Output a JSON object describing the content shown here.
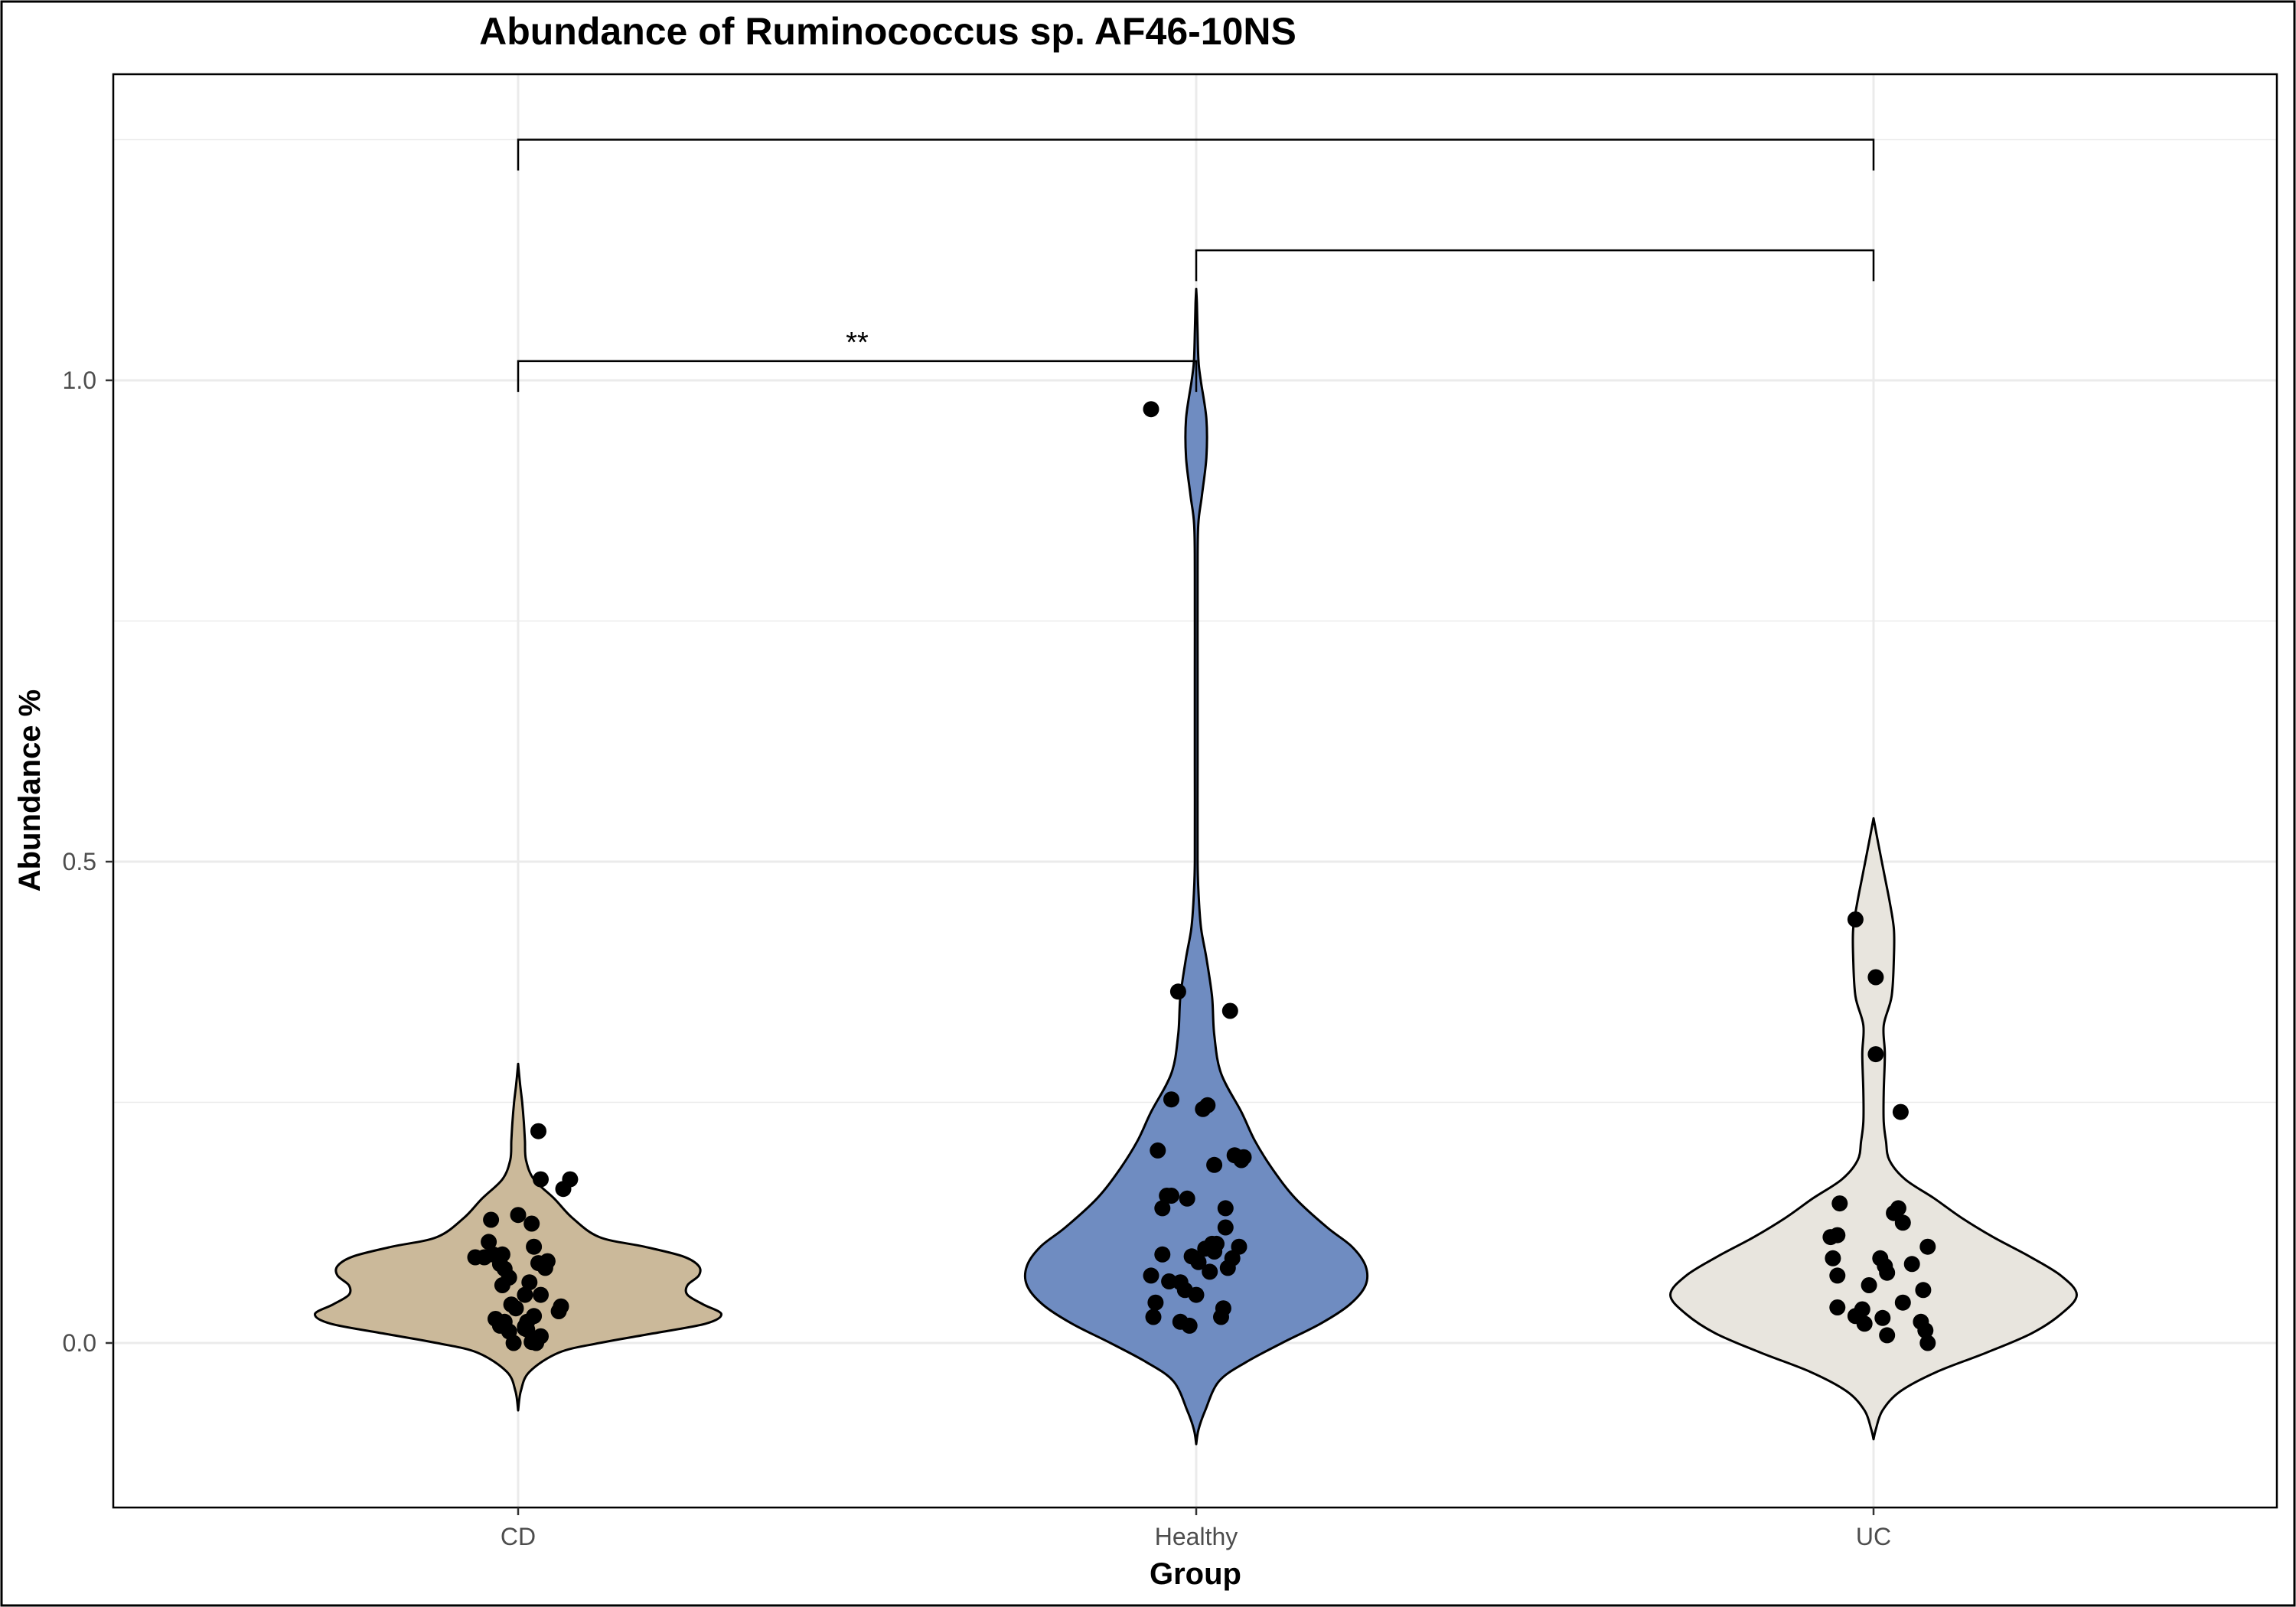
{
  "chart_data": {
    "type": "violin",
    "title": "Abundance of Ruminococcus sp. AF46-10NS",
    "xlabel": "Group",
    "ylabel": "Abundance %",
    "categories": [
      "CD",
      "Healthy",
      "UC"
    ],
    "ylim": [
      -0.17,
      1.3
    ],
    "yticks": [
      0.0,
      0.5,
      1.0
    ],
    "ytick_labels": [
      "0.0",
      "0.5",
      "1.0"
    ],
    "grid": true,
    "colors": {
      "CD": "#cbb99a",
      "Healthy": "#6f8cc1",
      "UC": "#e8e5de",
      "points": "#000000",
      "grid": "#ebebeb"
    },
    "violins": [
      {
        "group": "CD",
        "y": [
          -0.07,
          -0.05,
          -0.03,
          -0.01,
          0.0,
          0.01,
          0.02,
          0.03,
          0.04,
          0.05,
          0.06,
          0.07,
          0.08,
          0.09,
          0.1,
          0.11,
          0.13,
          0.15,
          0.17,
          0.19,
          0.21,
          0.23,
          0.25,
          0.27,
          0.29
        ],
        "half_width": [
          0.0,
          0.012,
          0.05,
          0.18,
          0.36,
          0.6,
          0.83,
          0.9,
          0.82,
          0.75,
          0.75,
          0.8,
          0.8,
          0.73,
          0.56,
          0.36,
          0.24,
          0.16,
          0.07,
          0.035,
          0.03,
          0.025,
          0.018,
          0.008,
          0.0
        ]
      },
      {
        "group": "Healthy",
        "y": [
          -0.105,
          -0.09,
          -0.07,
          -0.04,
          -0.02,
          0.0,
          0.02,
          0.04,
          0.06,
          0.08,
          0.1,
          0.12,
          0.15,
          0.18,
          0.21,
          0.24,
          0.28,
          0.32,
          0.36,
          0.4,
          0.43,
          0.46,
          0.5,
          0.6,
          0.7,
          0.8,
          0.85,
          0.88,
          0.92,
          0.96,
          1.0,
          1.02,
          1.05,
          1.08,
          1.095
        ],
        "half_width": [
          0.0,
          0.01,
          0.04,
          0.1,
          0.22,
          0.38,
          0.55,
          0.68,
          0.75,
          0.75,
          0.69,
          0.58,
          0.44,
          0.34,
          0.26,
          0.2,
          0.11,
          0.08,
          0.07,
          0.045,
          0.022,
          0.012,
          0.006,
          0.006,
          0.006,
          0.006,
          0.009,
          0.025,
          0.045,
          0.045,
          0.02,
          0.01,
          0.006,
          0.003,
          0.0
        ]
      },
      {
        "group": "UC",
        "y": [
          -0.1,
          -0.09,
          -0.07,
          -0.05,
          -0.03,
          -0.01,
          0.01,
          0.03,
          0.05,
          0.07,
          0.09,
          0.11,
          0.13,
          0.15,
          0.17,
          0.19,
          0.21,
          0.23,
          0.26,
          0.3,
          0.33,
          0.36,
          0.4,
          0.43,
          0.46,
          0.49,
          0.52,
          0.545
        ],
        "half_width": [
          0.0,
          0.01,
          0.04,
          0.12,
          0.28,
          0.5,
          0.7,
          0.83,
          0.9,
          0.83,
          0.69,
          0.53,
          0.39,
          0.27,
          0.14,
          0.07,
          0.055,
          0.045,
          0.045,
          0.05,
          0.045,
          0.08,
          0.09,
          0.09,
          0.07,
          0.045,
          0.02,
          0.0
        ]
      }
    ],
    "points": [
      {
        "group": "CD",
        "x_jitter": [
          -0.19,
          -0.15,
          -0.13,
          -0.12,
          -0.11,
          -0.1,
          -0.08,
          -0.07,
          -0.08,
          -0.07,
          -0.06,
          -0.03,
          -0.04,
          0.03,
          0.04,
          0.06,
          0.09,
          0.1,
          0.2,
          0.23,
          -0.02,
          -0.01,
          0.05,
          0.07,
          0.09,
          -0.06,
          -0.04,
          0.03,
          0.06,
          0.07,
          0.1,
          0.12,
          0.13,
          0.18,
          0.19,
          0.0,
          0.03,
          0.04,
          0.08,
          0.1
        ],
        "values": [
          0.089,
          0.089,
          0.105,
          0.128,
          0.092,
          0.025,
          0.018,
          0.06,
          0.082,
          0.092,
          0.077,
          0.04,
          0.068,
          0.05,
          0.014,
          0.124,
          0.22,
          0.17,
          0.16,
          0.17,
          0.0,
          0.036,
          0.063,
          0.1,
          0.083,
          0.022,
          0.012,
          0.017,
          0.001,
          0.028,
          0.05,
          0.078,
          0.085,
          0.033,
          0.038,
          0.133,
          0.015,
          0.022,
          0.0,
          0.007
        ]
      },
      {
        "group": "Healthy",
        "x_jitter": [
          -0.2,
          -0.2,
          -0.19,
          -0.18,
          -0.15,
          -0.17,
          -0.15,
          -0.13,
          -0.12,
          -0.11,
          -0.08,
          -0.07,
          -0.07,
          -0.05,
          -0.04,
          -0.03,
          -0.02,
          0.0,
          0.01,
          0.03,
          0.04,
          0.05,
          0.06,
          0.07,
          0.08,
          0.08,
          0.09,
          0.11,
          0.12,
          0.13,
          0.13,
          0.14,
          0.15,
          0.16,
          0.17,
          0.19,
          0.2,
          0.21,
          -0.11
        ],
        "values": [
          0.97,
          0.07,
          0.027,
          0.042,
          0.14,
          0.2,
          0.092,
          0.153,
          0.064,
          0.253,
          0.365,
          0.022,
          0.063,
          0.055,
          0.15,
          0.018,
          0.09,
          0.05,
          0.084,
          0.243,
          0.098,
          0.247,
          0.074,
          0.103,
          0.185,
          0.095,
          0.103,
          0.027,
          0.036,
          0.12,
          0.14,
          0.078,
          0.345,
          0.088,
          0.195,
          0.1,
          0.19,
          0.193,
          0.153
        ]
      },
      {
        "group": "UC",
        "x_jitter": [
          -0.19,
          -0.18,
          -0.16,
          -0.16,
          -0.16,
          -0.15,
          -0.08,
          -0.08,
          -0.05,
          -0.04,
          -0.02,
          0.04,
          0.01,
          0.01,
          0.03,
          0.05,
          0.06,
          0.06,
          0.09,
          0.11,
          0.12,
          0.13,
          0.13,
          0.17,
          0.21,
          0.22,
          0.23,
          0.24,
          0.24
        ],
        "values": [
          0.11,
          0.088,
          0.037,
          0.112,
          0.07,
          0.145,
          0.44,
          0.028,
          0.035,
          0.02,
          0.06,
          0.026,
          0.3,
          0.38,
          0.088,
          0.08,
          0.073,
          0.008,
          0.135,
          0.14,
          0.24,
          0.125,
          0.042,
          0.082,
          0.022,
          0.055,
          0.013,
          0.0,
          0.1
        ]
      }
    ],
    "comparisons": [
      {
        "from": "CD",
        "to": "Healthy",
        "y": 1.02,
        "label": "**"
      },
      {
        "from": "Healthy",
        "to": "UC",
        "y": 1.135,
        "label": ""
      },
      {
        "from": "CD",
        "to": "UC",
        "y": 1.25,
        "label": ""
      }
    ]
  }
}
